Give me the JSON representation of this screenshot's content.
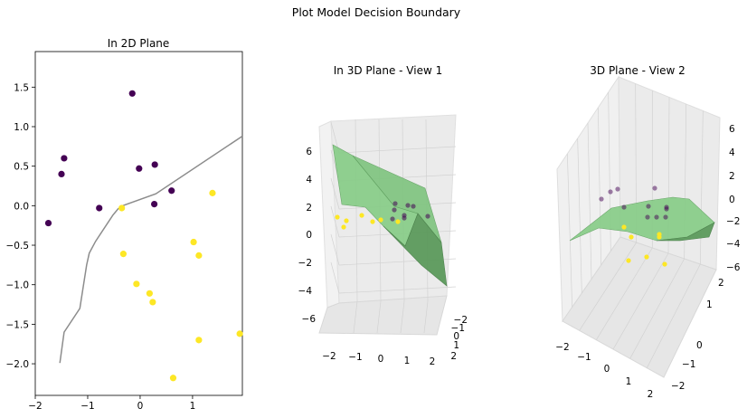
{
  "figure": {
    "suptitle": "Plot Model Decision Boundary"
  },
  "colors": {
    "class0": "#440154",
    "class1": "#fde725",
    "boundary": "#8c8c8c",
    "surface": "#7fc97a",
    "surface_edge": "#5b9e5a"
  },
  "chart_data": [
    {
      "type": "scatter",
      "title": "In 2D Plane",
      "xlim": [
        -2,
        1.95
      ],
      "ylim": [
        -2.4,
        1.95
      ],
      "x_ticks": [
        "−2",
        "−1",
        "0",
        "1"
      ],
      "y_ticks": [
        "1.5",
        "1.0",
        "0.5",
        "0.0",
        "−0.5",
        "−1.0",
        "−1.5",
        "−2.0"
      ],
      "x_tick_values": [
        -2,
        -1,
        0,
        1
      ],
      "y_tick_values": [
        1.5,
        1.0,
        0.5,
        0.0,
        -0.5,
        -1.0,
        -1.5,
        -2.0
      ],
      "series": [
        {
          "class": 0,
          "points": [
            [
              -1.75,
              -0.22
            ],
            [
              -1.5,
              0.4
            ],
            [
              -1.45,
              0.6
            ],
            [
              -0.78,
              -0.03
            ],
            [
              -0.15,
              1.42
            ],
            [
              -0.02,
              0.47
            ],
            [
              0.28,
              0.52
            ],
            [
              0.27,
              0.02
            ],
            [
              0.6,
              0.19
            ]
          ]
        },
        {
          "class": 1,
          "points": [
            [
              -0.35,
              -0.03
            ],
            [
              -0.32,
              -0.61
            ],
            [
              -0.07,
              -0.99
            ],
            [
              0.18,
              -1.11
            ],
            [
              0.24,
              -1.22
            ],
            [
              1.02,
              -0.46
            ],
            [
              1.12,
              -0.63
            ],
            [
              1.38,
              0.16
            ],
            [
              1.12,
              -1.7
            ],
            [
              0.63,
              -2.18
            ],
            [
              1.9,
              -1.62
            ]
          ]
        }
      ],
      "boundary": [
        [
          -1.53,
          -1.99
        ],
        [
          -1.45,
          -1.6
        ],
        [
          -1.15,
          -1.3
        ],
        [
          -1.02,
          -0.75
        ],
        [
          -0.97,
          -0.6
        ],
        [
          -0.85,
          -0.45
        ],
        [
          -0.52,
          -0.12
        ],
        [
          -0.42,
          -0.04
        ],
        [
          -0.33,
          0.0
        ],
        [
          0.3,
          0.15
        ],
        [
          1.95,
          0.88
        ]
      ]
    },
    {
      "type": "scatter3d",
      "title": "In 3D Plane - View 1",
      "z_ticks": [
        "6",
        "4",
        "2",
        "0",
        "−2",
        "−4",
        "−6"
      ],
      "x_ticks": [
        "−2",
        "−1",
        "0",
        "1",
        "2"
      ],
      "y_ticks": [
        "−2",
        "−1",
        "0",
        "1",
        "2"
      ]
    },
    {
      "type": "scatter3d",
      "title": "3D Plane - View 2",
      "z_ticks": [
        "6",
        "4",
        "2",
        "0",
        "−2",
        "−4",
        "−6"
      ],
      "x_ticks": [
        "−2",
        "−1",
        "0",
        "1",
        "2"
      ],
      "y_ticks": [
        "2",
        "1",
        "0",
        "−1",
        "−2"
      ]
    }
  ]
}
